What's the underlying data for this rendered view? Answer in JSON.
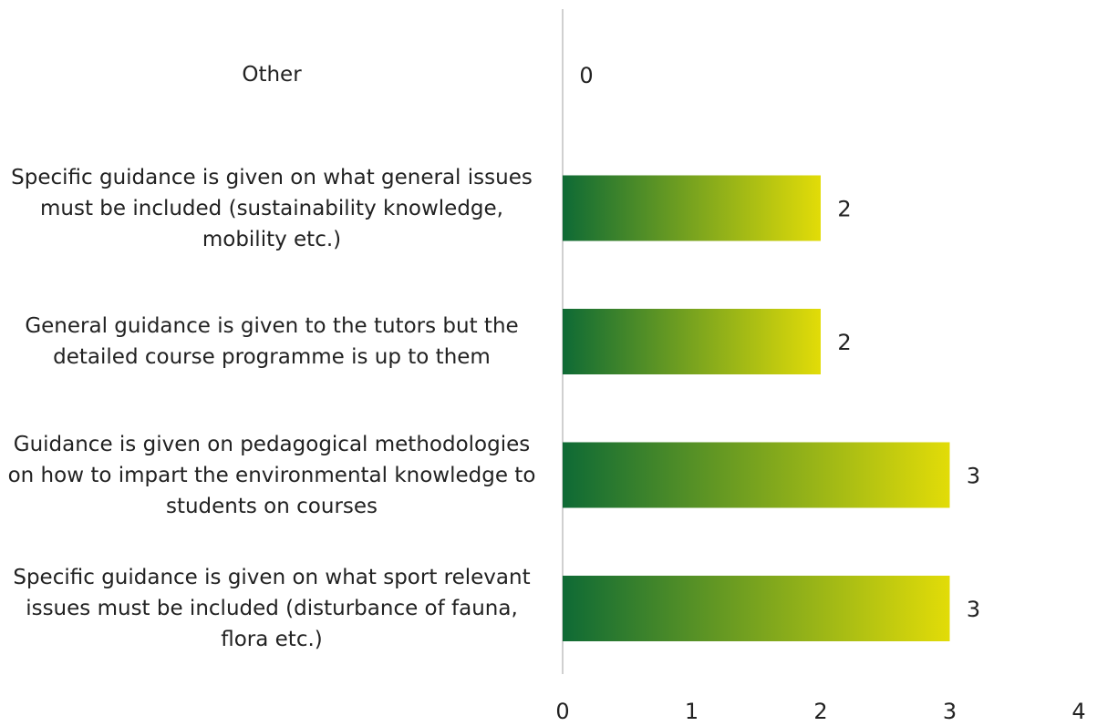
{
  "chart_data": {
    "type": "barh",
    "categories": [
      "Other",
      "Specific guidance is given on what general issues must be included (sustainability knowledge, mobility etc.)",
      "General guidance is given to the tutors but the detailed course programme is up to them",
      "Guidance is given on pedagogical methodologies on how to impart the environmental knowledge to students on courses",
      "Specific guidance is given on what sport relevant issues must be included (disturbance of fauna, flora etc.)"
    ],
    "values": [
      0,
      2,
      2,
      3,
      3
    ],
    "gradient": [
      "#0e6a35",
      "#e2dc08"
    ],
    "xlim": [
      0,
      4
    ],
    "xticks": [
      0,
      1,
      2,
      3,
      4
    ],
    "grid": false
  }
}
